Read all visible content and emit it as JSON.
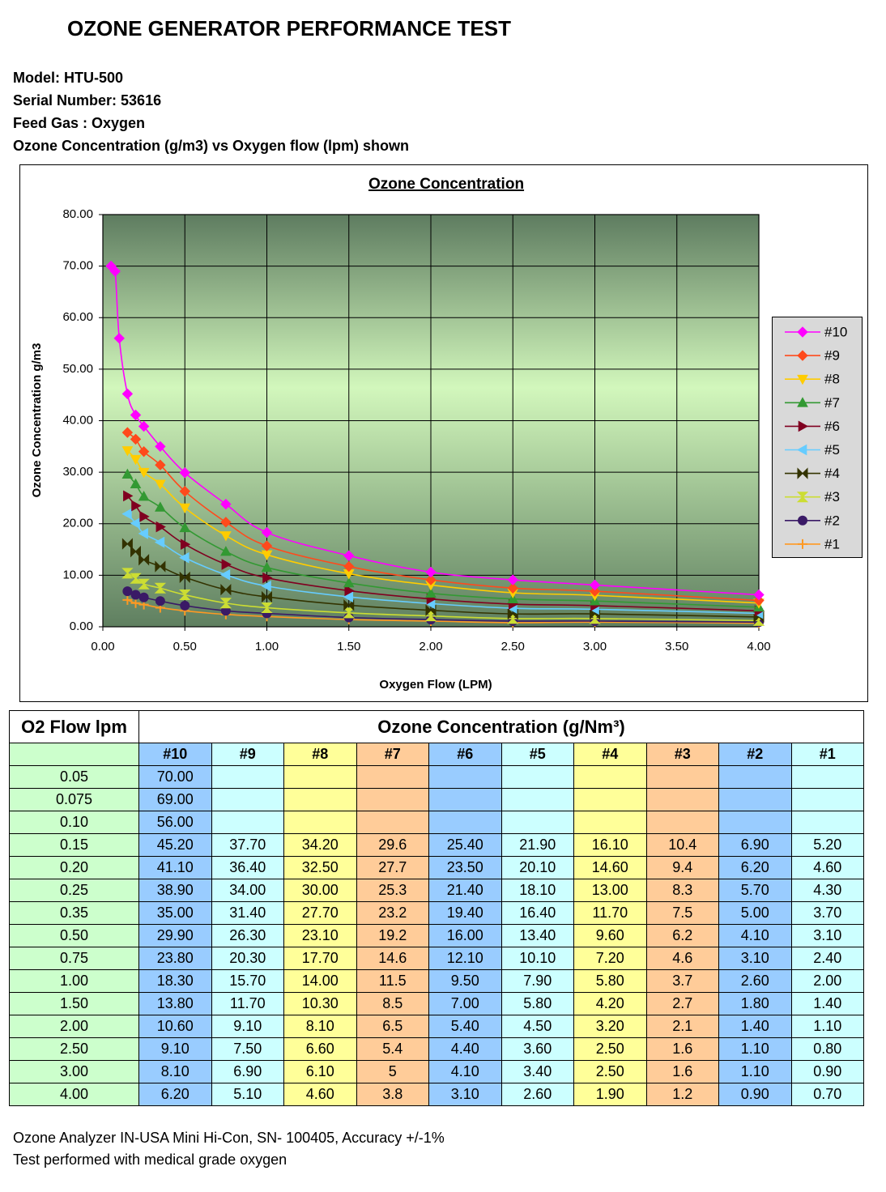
{
  "header": {
    "title": "OZONE GENERATOR PERFORMANCE TEST",
    "lines": [
      "Model: HTU-500",
      "Serial Number: 53616",
      "Feed Gas :  Oxygen",
      "Ozone Concentration (g/m3) vs Oxygen flow (lpm) shown"
    ]
  },
  "chart_data": {
    "type": "line",
    "title": "Ozone Concentration",
    "x_label": "Oxygen Flow (LPM)",
    "y_label": "Ozone Concentration g/m3",
    "x": [
      0.05,
      0.075,
      0.1,
      0.15,
      0.2,
      0.25,
      0.35,
      0.5,
      0.75,
      1.0,
      1.5,
      2.0,
      2.5,
      3.0,
      4.0
    ],
    "xlim": [
      0,
      4
    ],
    "xticks": [
      {
        "value": 0,
        "label": "0.00"
      },
      {
        "value": 0.5,
        "label": "0.50"
      },
      {
        "value": 1,
        "label": "1.00"
      },
      {
        "value": 1.5,
        "label": "1.50"
      },
      {
        "value": 2,
        "label": "2.00"
      },
      {
        "value": 2.5,
        "label": "2.50"
      },
      {
        "value": 3,
        "label": "3.00"
      },
      {
        "value": 3.5,
        "label": "3.50"
      },
      {
        "value": 4,
        "label": "4.00"
      }
    ],
    "ylim": [
      0,
      80
    ],
    "yticks": [
      {
        "value": 0,
        "label": "0.00"
      },
      {
        "value": 10,
        "label": "10.00"
      },
      {
        "value": 20,
        "label": "20.00"
      },
      {
        "value": 30,
        "label": "30.00"
      },
      {
        "value": 40,
        "label": "40.00"
      },
      {
        "value": 50,
        "label": "50.00"
      },
      {
        "value": 60,
        "label": "60.00"
      },
      {
        "value": 70,
        "label": "70.00"
      },
      {
        "value": 80,
        "label": "80.00"
      }
    ],
    "grid": true,
    "legend": "right",
    "series": [
      {
        "name": "#10",
        "color": "#ff00ff",
        "marker": "diamond",
        "values": [
          70,
          69,
          56,
          45.2,
          41.1,
          38.9,
          35,
          29.9,
          23.8,
          18.3,
          13.8,
          10.6,
          9.1,
          8.1,
          6.2
        ]
      },
      {
        "name": "#9",
        "color": "#ff4a1c",
        "marker": "diamond",
        "values": [
          null,
          null,
          null,
          37.7,
          36.4,
          34,
          31.4,
          26.3,
          20.3,
          15.7,
          11.7,
          9.1,
          7.5,
          6.9,
          5.1
        ]
      },
      {
        "name": "#8",
        "color": "#ffcc00",
        "marker": "triangle-down",
        "values": [
          null,
          null,
          null,
          34.2,
          32.5,
          30,
          27.7,
          23.1,
          17.7,
          14,
          10.3,
          8.1,
          6.6,
          6.1,
          4.6
        ]
      },
      {
        "name": "#7",
        "color": "#339933",
        "marker": "triangle-up",
        "values": [
          null,
          null,
          null,
          29.6,
          27.7,
          25.3,
          23.2,
          19.2,
          14.6,
          11.5,
          8.5,
          6.5,
          5.4,
          5,
          3.8
        ]
      },
      {
        "name": "#6",
        "color": "#800020",
        "marker": "triangle-right",
        "values": [
          null,
          null,
          null,
          25.4,
          23.5,
          21.4,
          19.4,
          16,
          12.1,
          9.5,
          7,
          5.4,
          4.4,
          4.1,
          3.1
        ]
      },
      {
        "name": "#5",
        "color": "#66ccff",
        "marker": "triangle-left",
        "values": [
          null,
          null,
          null,
          21.9,
          20.1,
          18.1,
          16.4,
          13.4,
          10.1,
          7.9,
          5.8,
          4.5,
          3.6,
          3.4,
          2.6
        ]
      },
      {
        "name": "#4",
        "color": "#333300",
        "marker": "bowtie",
        "values": [
          null,
          null,
          null,
          16.1,
          14.6,
          13,
          11.7,
          9.6,
          7.2,
          5.8,
          4.2,
          3.2,
          2.5,
          2.5,
          1.9
        ]
      },
      {
        "name": "#3",
        "color": "#ccdd33",
        "marker": "hourglass",
        "values": [
          null,
          null,
          null,
          10.4,
          9.4,
          8.3,
          7.5,
          6.2,
          4.6,
          3.7,
          2.7,
          2.1,
          1.6,
          1.6,
          1.2
        ]
      },
      {
        "name": "#2",
        "color": "#3a1a66",
        "marker": "circle",
        "values": [
          null,
          null,
          null,
          6.9,
          6.2,
          5.7,
          5,
          4.1,
          3.1,
          2.6,
          1.8,
          1.4,
          1.1,
          1.1,
          0.9
        ]
      },
      {
        "name": "#1",
        "color": "#ff9922",
        "marker": "plus",
        "values": [
          null,
          null,
          null,
          5.2,
          4.6,
          4.3,
          3.7,
          3.1,
          2.4,
          2,
          1.4,
          1.1,
          0.8,
          0.9,
          0.7
        ]
      }
    ]
  },
  "table": {
    "corner": "O2 Flow lpm",
    "group_header": "Ozone Concentration (g/Nm³)",
    "columns": [
      "#10",
      "#9",
      "#8",
      "#7",
      "#6",
      "#5",
      "#4",
      "#3",
      "#2",
      "#1"
    ],
    "rows": [
      [
        "0.05",
        "70.00",
        null,
        null,
        null,
        null,
        null,
        null,
        null,
        null,
        null
      ],
      [
        "0.075",
        "69.00",
        null,
        null,
        null,
        null,
        null,
        null,
        null,
        null,
        null
      ],
      [
        "0.10",
        "56.00",
        null,
        null,
        null,
        null,
        null,
        null,
        null,
        null,
        null
      ],
      [
        "0.15",
        "45.20",
        "37.70",
        "34.20",
        "29.6",
        "25.40",
        "21.90",
        "16.10",
        "10.4",
        "6.90",
        "5.20"
      ],
      [
        "0.20",
        "41.10",
        "36.40",
        "32.50",
        "27.7",
        "23.50",
        "20.10",
        "14.60",
        "9.4",
        "6.20",
        "4.60"
      ],
      [
        "0.25",
        "38.90",
        "34.00",
        "30.00",
        "25.3",
        "21.40",
        "18.10",
        "13.00",
        "8.3",
        "5.70",
        "4.30"
      ],
      [
        "0.35",
        "35.00",
        "31.40",
        "27.70",
        "23.2",
        "19.40",
        "16.40",
        "11.70",
        "7.5",
        "5.00",
        "3.70"
      ],
      [
        "0.50",
        "29.90",
        "26.30",
        "23.10",
        "19.2",
        "16.00",
        "13.40",
        "9.60",
        "6.2",
        "4.10",
        "3.10"
      ],
      [
        "0.75",
        "23.80",
        "20.30",
        "17.70",
        "14.6",
        "12.10",
        "10.10",
        "7.20",
        "4.6",
        "3.10",
        "2.40"
      ],
      [
        "1.00",
        "18.30",
        "15.70",
        "14.00",
        "11.5",
        "9.50",
        "7.90",
        "5.80",
        "3.7",
        "2.60",
        "2.00"
      ],
      [
        "1.50",
        "13.80",
        "11.70",
        "10.30",
        "8.5",
        "7.00",
        "5.80",
        "4.20",
        "2.7",
        "1.80",
        "1.40"
      ],
      [
        "2.00",
        "10.60",
        "9.10",
        "8.10",
        "6.5",
        "5.40",
        "4.50",
        "3.20",
        "2.1",
        "1.40",
        "1.10"
      ],
      [
        "2.50",
        "9.10",
        "7.50",
        "6.60",
        "5.4",
        "4.40",
        "3.60",
        "2.50",
        "1.6",
        "1.10",
        "0.80"
      ],
      [
        "3.00",
        "8.10",
        "6.90",
        "6.10",
        "5",
        "4.10",
        "3.40",
        "2.50",
        "1.6",
        "1.10",
        "0.90"
      ],
      [
        "4.00",
        "6.20",
        "5.10",
        "4.60",
        "3.8",
        "3.10",
        "2.60",
        "1.90",
        "1.2",
        "0.90",
        "0.70"
      ]
    ]
  },
  "footer": [
    "Ozone Analyzer IN-USA Mini Hi-Con, SN- 100405, Accuracy +/-1%",
    "Test performed with medical grade oxygen"
  ]
}
